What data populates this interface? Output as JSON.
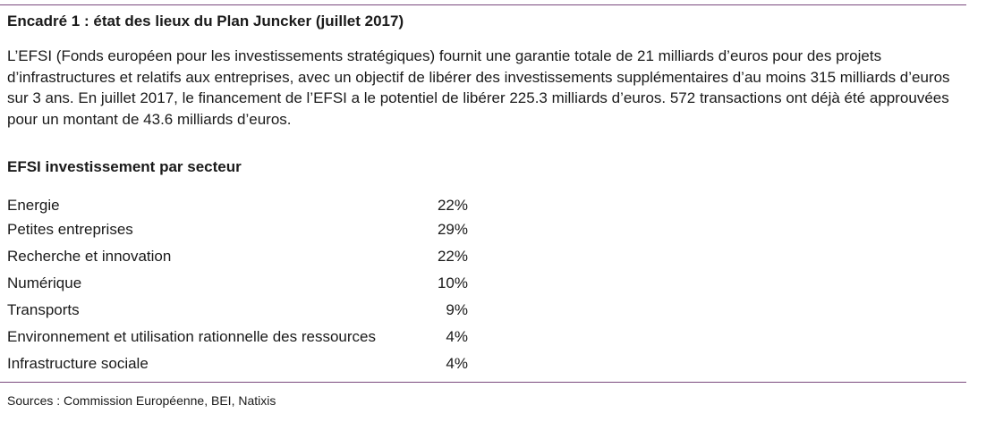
{
  "box": {
    "title": "Encadré 1 : état des lieux du Plan Juncker (juillet 2017)",
    "intro": "L’EFSI (Fonds européen pour les investissements stratégiques) fournit une garantie totale de 21 milliards d’euros pour des projets d’infrastructures et relatifs aux entreprises, avec un objectif de libérer des investissements supplémentaires d’au moins 315 milliards d’euros sur 3 ans. En juillet 2017, le financement de l’EFSI a le potentiel de libérer 225.3 milliards d’euros. 572 transactions ont déjà été approuvées pour un montant de 43.6 milliards d’euros.",
    "subtitle": "EFSI investissement par secteur",
    "sectors": [
      {
        "label": "Energie",
        "value": "22%"
      },
      {
        "label": "Petites entreprises",
        "value": "29%"
      },
      {
        "label": "Recherche et innovation",
        "value": "22%"
      },
      {
        "label": "Numérique",
        "value": "10%"
      },
      {
        "label": "Transports",
        "value": "9%"
      },
      {
        "label": "Environnement et utilisation rationnelle des ressources",
        "value": "4%"
      },
      {
        "label": "Infrastructure sociale",
        "value": "4%"
      }
    ],
    "source": "Sources : Commission Européenne, BEI, Natixis"
  },
  "colors": {
    "rule": "#7a4a7e",
    "text": "#1a1a1a"
  }
}
